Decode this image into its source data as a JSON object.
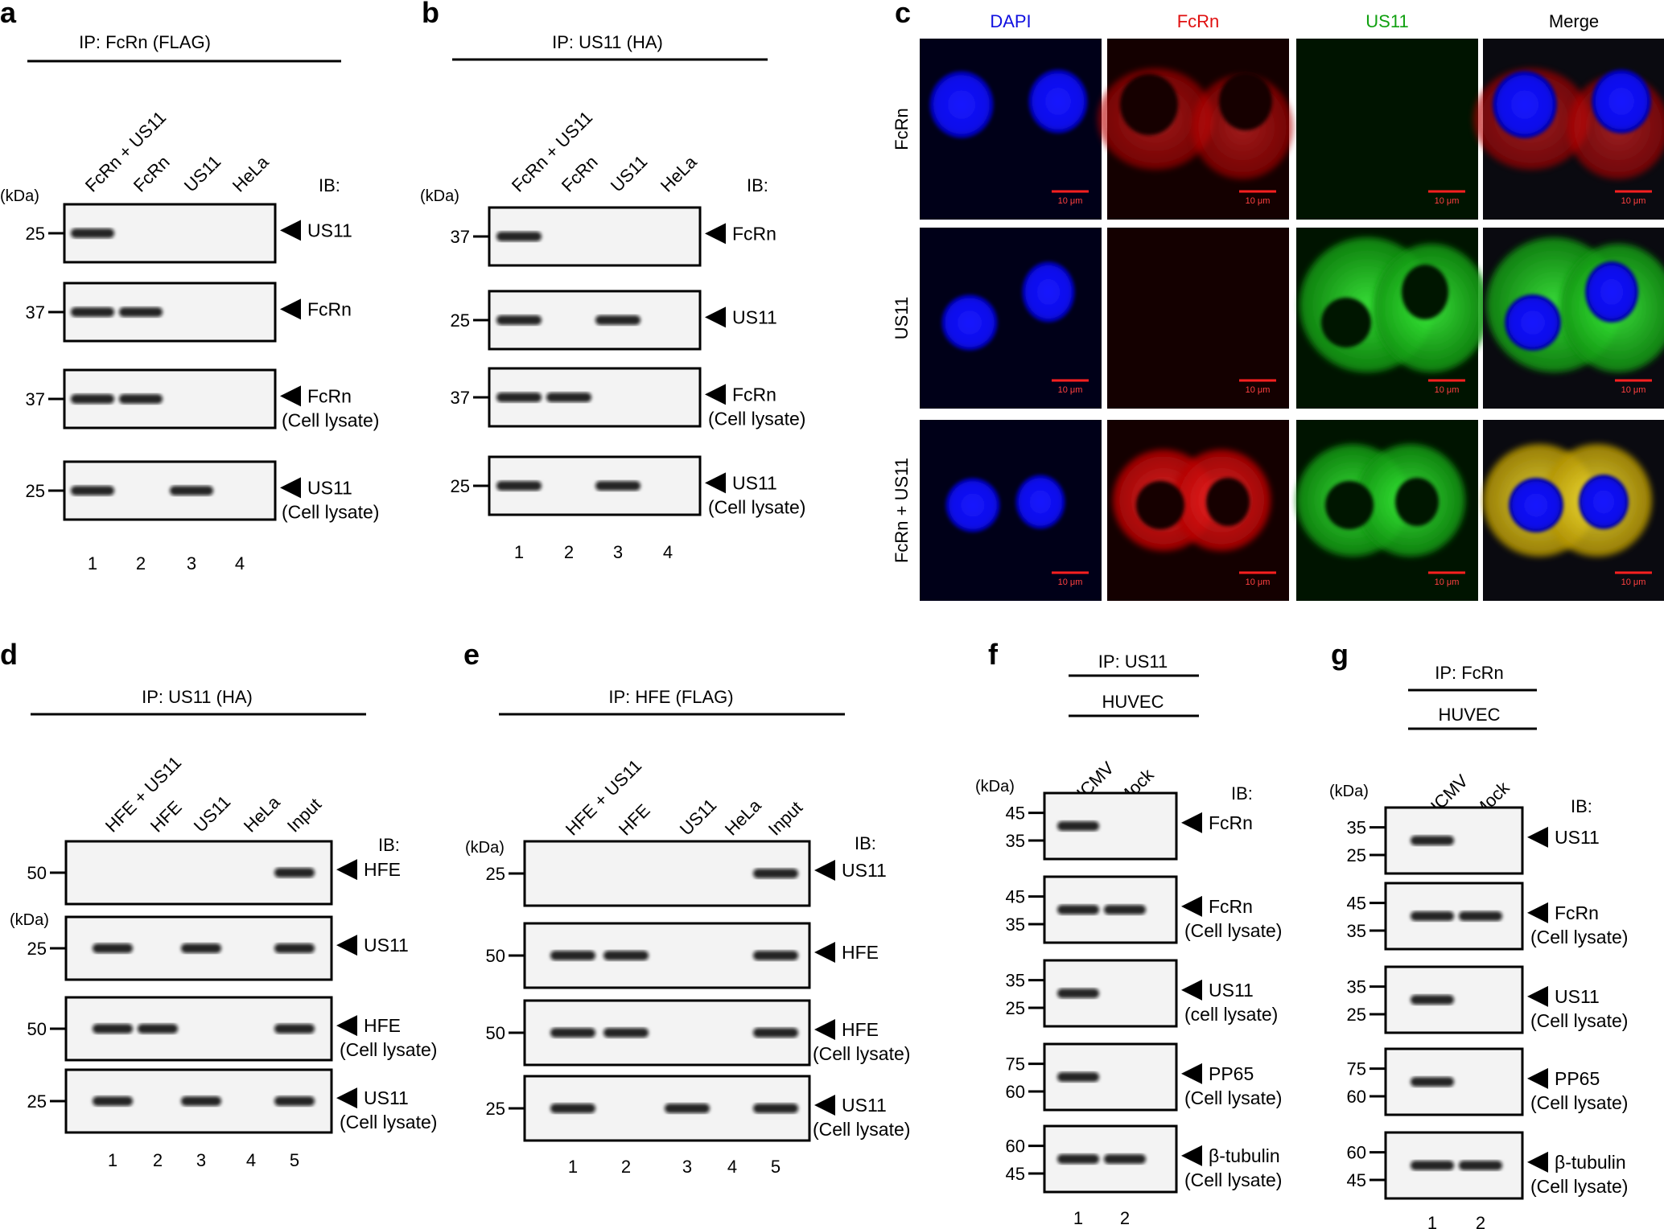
{
  "panels": {
    "a": {
      "letter": "a",
      "ip": "IP: FcRn (FLAG)",
      "kda": "(kDa)",
      "ib": "IB:",
      "lanes": [
        "FcRn + US11",
        "FcRn",
        "US11",
        "HeLa"
      ],
      "lane_numbers": [
        "1",
        "2",
        "3",
        "4"
      ],
      "blots": [
        {
          "label": "US11",
          "sub": "",
          "markers": [
            "25"
          ],
          "bands": [
            1
          ]
        },
        {
          "label": "FcRn",
          "sub": "",
          "markers": [
            "37"
          ],
          "bands": [
            1,
            2
          ]
        },
        {
          "label": "FcRn",
          "sub": "(Cell lysate)",
          "markers": [
            "37"
          ],
          "bands": [
            1,
            2
          ]
        },
        {
          "label": "US11",
          "sub": "(Cell lysate)",
          "markers": [
            "25"
          ],
          "bands": [
            1,
            3
          ]
        }
      ]
    },
    "b": {
      "letter": "b",
      "ip": "IP: US11 (HA)",
      "kda": "(kDa)",
      "ib": "IB:",
      "lanes": [
        "FcRn + US11",
        "FcRn",
        "US11",
        "HeLa"
      ],
      "lane_numbers": [
        "1",
        "2",
        "3",
        "4"
      ],
      "blots": [
        {
          "label": "FcRn",
          "sub": "",
          "markers": [
            "37"
          ],
          "bands": [
            1
          ]
        },
        {
          "label": "US11",
          "sub": "",
          "markers": [
            "25"
          ],
          "bands": [
            1,
            3
          ]
        },
        {
          "label": "FcRn",
          "sub": "(Cell lysate)",
          "markers": [
            "37"
          ],
          "bands": [
            1,
            2
          ]
        },
        {
          "label": "US11",
          "sub": "(Cell lysate)",
          "markers": [
            "25"
          ],
          "bands": [
            1,
            3
          ]
        }
      ]
    },
    "c": {
      "letter": "c",
      "columns": [
        "DAPI",
        "FcRn",
        "US11",
        "Merge"
      ],
      "column_colors": [
        "#1010e0",
        "#e01010",
        "#10a010",
        "#000000"
      ],
      "rows": [
        "FcRn",
        "US11",
        "FcRn + US11"
      ],
      "scale": "10 μm"
    },
    "d": {
      "letter": "d",
      "ip": "IP: US11 (HA)",
      "kda": "(kDa)",
      "ib": "IB:",
      "lanes": [
        "HFE + US11",
        "HFE",
        "US11",
        "HeLa",
        "Input"
      ],
      "lane_numbers": [
        "1",
        "2",
        "3",
        "4",
        "5"
      ],
      "blots": [
        {
          "label": "HFE",
          "sub": "",
          "markers": [
            "50"
          ],
          "bands": [
            5
          ]
        },
        {
          "label": "US11",
          "sub": "",
          "markers": [
            "25"
          ],
          "bands": [
            1,
            3,
            5
          ]
        },
        {
          "label": "HFE",
          "sub": "(Cell lysate)",
          "markers": [
            "50"
          ],
          "bands": [
            1,
            2,
            5
          ]
        },
        {
          "label": "US11",
          "sub": "(Cell lysate)",
          "markers": [
            "25"
          ],
          "bands": [
            1,
            3,
            5
          ]
        }
      ]
    },
    "e": {
      "letter": "e",
      "ip": "IP: HFE (FLAG)",
      "kda": "(kDa)",
      "ib": "IB:",
      "lanes": [
        "HFE + US11",
        "HFE",
        "US11",
        "HeLa",
        "Input"
      ],
      "lane_numbers": [
        "1",
        "2",
        "3",
        "4",
        "5"
      ],
      "blots": [
        {
          "label": "US11",
          "sub": "",
          "markers": [
            "25"
          ],
          "bands": [
            5
          ]
        },
        {
          "label": "HFE",
          "sub": "",
          "markers": [
            "50"
          ],
          "bands": [
            1,
            2,
            5
          ]
        },
        {
          "label": "HFE",
          "sub": "(Cell lysate)",
          "markers": [
            "50"
          ],
          "bands": [
            1,
            2,
            5
          ]
        },
        {
          "label": "US11",
          "sub": "(Cell lysate)",
          "markers": [
            "25"
          ],
          "bands": [
            1,
            3,
            5
          ]
        }
      ]
    },
    "f": {
      "letter": "f",
      "ip": "IP: US11",
      "cells": "HUVEC",
      "kda": "(kDa)",
      "ib": "IB:",
      "lanes": [
        "HCMV",
        "Mock"
      ],
      "lane_numbers": [
        "1",
        "2"
      ],
      "blots": [
        {
          "label": "FcRn",
          "sub": "",
          "markers": [
            "45",
            "35"
          ],
          "bands": [
            1
          ]
        },
        {
          "label": "FcRn",
          "sub": "(Cell lysate)",
          "markers": [
            "45",
            "35"
          ],
          "bands": [
            1,
            2
          ]
        },
        {
          "label": "US11",
          "sub": "(cell lysate)",
          "markers": [
            "35",
            "25"
          ],
          "bands": [
            1
          ]
        },
        {
          "label": "PP65",
          "sub": "(Cell lysate)",
          "markers": [
            "75",
            "60"
          ],
          "bands": [
            1
          ]
        },
        {
          "label": "β-tubulin",
          "sub": "(Cell lysate)",
          "markers": [
            "60",
            "45"
          ],
          "bands": [
            1,
            2
          ]
        }
      ]
    },
    "g": {
      "letter": "g",
      "ip": "IP: FcRn",
      "cells": "HUVEC",
      "kda": "(kDa)",
      "ib": "IB:",
      "lanes": [
        "HCMV",
        "Mock"
      ],
      "lane_numbers": [
        "1",
        "2"
      ],
      "blots": [
        {
          "label": "US11",
          "sub": "",
          "markers": [
            "35",
            "25"
          ],
          "bands": [
            1
          ]
        },
        {
          "label": "FcRn",
          "sub": "(Cell lysate)",
          "markers": [
            "45",
            "35"
          ],
          "bands": [
            1,
            2
          ]
        },
        {
          "label": "US11",
          "sub": "(Cell lysate)",
          "markers": [
            "35",
            "25"
          ],
          "bands": [
            1
          ]
        },
        {
          "label": "PP65",
          "sub": "(Cell lysate)",
          "markers": [
            "75",
            "60"
          ],
          "bands": [
            1
          ]
        },
        {
          "label": "β-tubulin",
          "sub": "(Cell lysate)",
          "markers": [
            "60",
            "45"
          ],
          "bands": [
            1,
            2
          ]
        }
      ]
    }
  }
}
